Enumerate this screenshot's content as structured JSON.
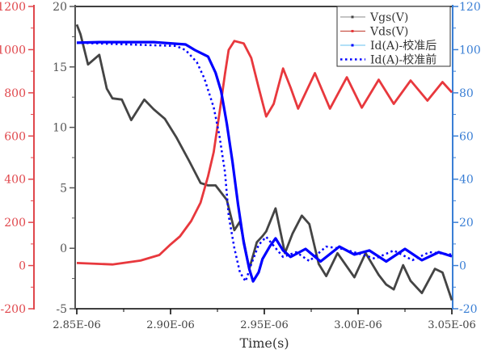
{
  "chart_data": {
    "type": "line",
    "title": "",
    "xlabel": "Time(s)",
    "xlim": [
      2.85e-06,
      3.05e-06
    ],
    "xticks": [
      "2.85E-06",
      "2.90E-06",
      "2.95E-06",
      "3.00E-06",
      "3.05E-06"
    ],
    "grid": false,
    "legend_position": "top-right",
    "axes": {
      "vds": {
        "side": "left-outer",
        "ylim": [
          -200,
          1200
        ],
        "ticks": [
          "-200",
          "0",
          "200",
          "400",
          "600",
          "800",
          "1000",
          "1200"
        ],
        "color": "#e0474c"
      },
      "vgs": {
        "side": "left-inner",
        "ylim": [
          -5,
          20
        ],
        "ticks": [
          "-5",
          "0",
          "5",
          "10",
          "15",
          "20"
        ],
        "color": "#555555"
      },
      "id": {
        "side": "right",
        "ylim": [
          -20,
          120
        ],
        "ticks": [
          "-20",
          "0",
          "20",
          "40",
          "60",
          "80",
          "100",
          "120"
        ],
        "color": "#3a7fd5"
      }
    },
    "series": [
      {
        "name": "Vgs(V)",
        "axis": "vgs",
        "color": "#444444",
        "style": "solid",
        "x": [
          2.85e-06,
          2.852e-06,
          2.856e-06,
          2.862e-06,
          2.866e-06,
          2.869e-06,
          2.874e-06,
          2.879e-06,
          2.886e-06,
          2.891e-06,
          2.897e-06,
          2.903e-06,
          2.91e-06,
          2.916e-06,
          2.92e-06,
          2.924e-06,
          2.93e-06,
          2.934e-06,
          2.937e-06,
          2.942e-06,
          2.946e-06,
          2.949e-06,
          2.951e-06,
          2.956e-06,
          2.961e-06,
          2.965e-06,
          2.97e-06,
          2.974e-06,
          2.979e-06,
          2.983e-06,
          2.989e-06,
          2.998e-06,
          3.004e-06,
          3.011e-06,
          3.015e-06,
          3.019e-06,
          3.024e-06,
          3.028e-06,
          3.034e-06,
          3.041e-06,
          3.045e-06,
          3.05e-06
        ],
        "y": [
          18.5,
          17.7,
          15.2,
          16.0,
          13.2,
          12.4,
          12.3,
          10.6,
          12.3,
          11.5,
          10.7,
          9.2,
          7.2,
          5.4,
          5.2,
          5.2,
          4.0,
          1.5,
          2.2,
          -1.7,
          0.5,
          1.0,
          1.4,
          3.3,
          -0.4,
          1.2,
          2.7,
          2.0,
          -1.3,
          -2.3,
          -0.4,
          -2.4,
          -0.4,
          -2.2,
          -3.0,
          -3.4,
          -1.4,
          -2.7,
          -3.7,
          -1.7,
          -2.0,
          -4.3
        ]
      },
      {
        "name": "Vds(V)",
        "axis": "vds",
        "color": "#e8383d",
        "style": "solid",
        "x": [
          2.85e-06,
          2.869e-06,
          2.884e-06,
          2.894e-06,
          2.9e-06,
          2.905e-06,
          2.911e-06,
          2.916e-06,
          2.92e-06,
          2.923e-06,
          2.926e-06,
          2.929e-06,
          2.931e-06,
          2.934e-06,
          2.939e-06,
          2.943e-06,
          2.947e-06,
          2.951e-06,
          2.955e-06,
          2.96e-06,
          2.964e-06,
          2.968e-06,
          2.977e-06,
          2.985e-06,
          2.994e-06,
          3.002e-06,
          3.011e-06,
          3.019e-06,
          3.028e-06,
          3.037e-06,
          3.045e-06,
          3.05e-06
        ],
        "y": [
          12,
          5,
          23,
          49,
          98,
          135,
          206,
          291,
          414,
          526,
          701,
          887,
          999,
          1040,
          1029,
          962,
          824,
          690,
          749,
          913,
          824,
          727,
          891,
          727,
          872,
          731,
          861,
          749,
          857,
          764,
          850,
          802
        ]
      },
      {
        "name": "Id(A)-校准后",
        "axis": "id",
        "color": "#0000ff",
        "style": "solid",
        "x": [
          2.85e-06,
          2.862e-06,
          2.891e-06,
          2.908e-06,
          2.913e-06,
          2.92e-06,
          2.924e-06,
          2.927e-06,
          2.93e-06,
          2.933e-06,
          2.936e-06,
          2.939e-06,
          2.942e-06,
          2.944e-06,
          2.947e-06,
          2.949e-06,
          2.953e-06,
          2.956e-06,
          2.96e-06,
          2.964e-06,
          2.972e-06,
          2.98e-06,
          2.99e-06,
          2.998e-06,
          3.006e-06,
          3.015e-06,
          3.025e-06,
          3.034e-06,
          3.043e-06,
          3.05e-06
        ],
        "y": [
          103.2,
          103.5,
          103.5,
          102.4,
          99.8,
          96.8,
          89.3,
          80.7,
          65.7,
          48.1,
          28.3,
          10.7,
          -1.6,
          -7.3,
          -3.1,
          3.0,
          9.0,
          12.6,
          7.0,
          4.0,
          7.7,
          1.9,
          8.8,
          5.1,
          7.0,
          1.9,
          7.7,
          2.5,
          6.2,
          4.3
        ]
      },
      {
        "name": "Id(A)-校准前",
        "axis": "id",
        "color": "#0000ff",
        "style": "dotted",
        "x": [
          2.85e-06,
          2.903e-06,
          2.908e-06,
          2.914e-06,
          2.918e-06,
          2.923e-06,
          2.926e-06,
          2.929e-06,
          2.931e-06,
          2.934e-06,
          2.937e-06,
          2.94e-06,
          2.943e-06,
          2.947e-06,
          2.951e-06,
          2.956e-06,
          2.96e-06,
          2.967e-06,
          2.974e-06,
          2.983e-06,
          2.992e-06,
          3.002e-06,
          3.009e-06,
          3.019e-06,
          3.029e-06,
          3.038e-06,
          3.05e-06
        ],
        "y": [
          103.2,
          101.7,
          99.8,
          94.2,
          86.7,
          73.2,
          60.5,
          43.3,
          23.1,
          8.1,
          -3.1,
          -7.3,
          0.6,
          9.6,
          13.3,
          8.1,
          4.0,
          6.2,
          2.1,
          8.8,
          7.7,
          5.1,
          3.2,
          7.0,
          2.5,
          6.2,
          5.1
        ]
      }
    ]
  }
}
